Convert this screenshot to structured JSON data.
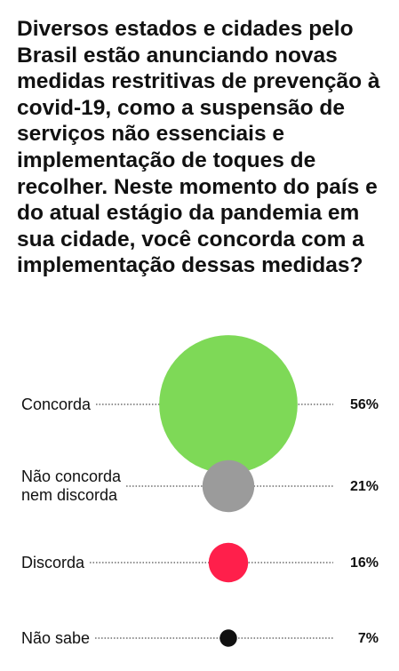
{
  "chart_data": {
    "type": "bubble",
    "title": "Diversos estados e cidades pelo Brasil estão anunciando novas medidas restritivas de prevenção à covid-19, como a suspensão de serviços não essenciais e implementação de toques de recolher. Neste momento do país e do atual estágio da pandemia em sua cidade, você concorda com a implementação dessas medidas?",
    "categories": [
      "Concorda",
      "Não concorda nem discorda",
      "Discorda",
      "Não sabe"
    ],
    "values": [
      56,
      21,
      16,
      7
    ],
    "value_labels": [
      "56%",
      "21%",
      "16%",
      "7%"
    ],
    "colors": [
      "#7ed957",
      "#9b9b9b",
      "#ff1f4b",
      "#111111"
    ]
  }
}
